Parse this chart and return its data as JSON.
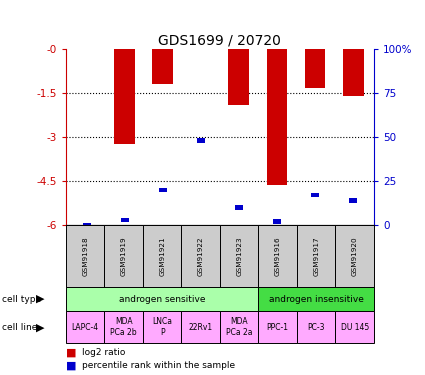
{
  "title": "GDS1699 / 20720",
  "samples": [
    "GSM91918",
    "GSM91919",
    "GSM91921",
    "GSM91922",
    "GSM91923",
    "GSM91916",
    "GSM91917",
    "GSM91920"
  ],
  "log2_ratios": [
    0.0,
    -3.25,
    -1.2,
    -0.02,
    -1.9,
    -4.65,
    -1.35,
    -1.6
  ],
  "percentile_ranks": [
    0.0,
    3.0,
    20.0,
    48.0,
    10.0,
    2.0,
    17.0,
    14.0
  ],
  "ylim_left": [
    -6,
    0
  ],
  "yticks_left": [
    0,
    -1.5,
    -3,
    -4.5,
    -6
  ],
  "ytick_labels_left": [
    "-0",
    "-1.5",
    "-3",
    "-4.5",
    "-6"
  ],
  "ylim_right": [
    0,
    100
  ],
  "yticks_right": [
    0,
    25,
    50,
    75,
    100
  ],
  "ytick_labels_right": [
    "0",
    "25",
    "50",
    "75",
    "100%"
  ],
  "cell_types": [
    {
      "label": "androgen sensitive",
      "span": [
        0,
        5
      ],
      "color": "#aaffaa"
    },
    {
      "label": "androgen insensitive",
      "span": [
        5,
        8
      ],
      "color": "#44dd44"
    }
  ],
  "cell_lines": [
    {
      "label": "LAPC-4",
      "span": [
        0,
        1
      ],
      "color": "#ffaaff"
    },
    {
      "label": "MDA\nPCa 2b",
      "span": [
        1,
        2
      ],
      "color": "#ffaaff"
    },
    {
      "label": "LNCa\nP",
      "span": [
        2,
        3
      ],
      "color": "#ffaaff"
    },
    {
      "label": "22Rv1",
      "span": [
        3,
        4
      ],
      "color": "#ffaaff"
    },
    {
      "label": "MDA\nPCa 2a",
      "span": [
        4,
        5
      ],
      "color": "#ffaaff"
    },
    {
      "label": "PPC-1",
      "span": [
        5,
        6
      ],
      "color": "#ffaaff"
    },
    {
      "label": "PC-3",
      "span": [
        6,
        7
      ],
      "color": "#ffaaff"
    },
    {
      "label": "DU 145",
      "span": [
        7,
        8
      ],
      "color": "#ffaaff"
    }
  ],
  "bar_color": "#cc0000",
  "blue_color": "#0000cc",
  "axis_left_color": "#cc0000",
  "axis_right_color": "#0000cc",
  "sample_box_color": "#cccccc",
  "legend_items": [
    {
      "label": "log2 ratio",
      "color": "#cc0000"
    },
    {
      "label": "percentile rank within the sample",
      "color": "#0000cc"
    }
  ]
}
